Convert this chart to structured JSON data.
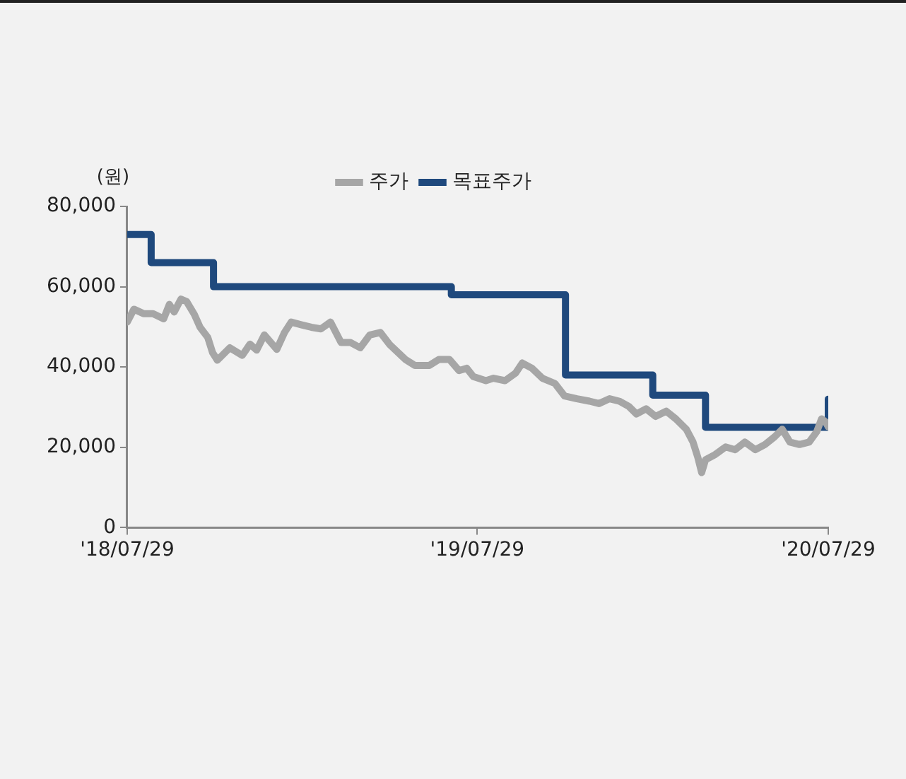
{
  "chart_data": {
    "type": "line",
    "ylabel": "(원)",
    "legend": "top",
    "grid": false,
    "marker": "none",
    "line_style": "solid",
    "xlim": [
      "2018-07-29",
      "2020-07-29"
    ],
    "xticks": [
      {
        "value": "2018-07-29",
        "label": "'18/07/29"
      },
      {
        "value": "2019-07-29",
        "label": "'19/07/29"
      },
      {
        "value": "2020-07-29",
        "label": "'20/07/29"
      }
    ],
    "ylim": [
      0,
      80000
    ],
    "yticks": [
      0,
      {
        "value": 20000,
        "label": "20,000"
      },
      {
        "value": 40000,
        "label": "40,000"
      },
      {
        "value": 60000,
        "label": "60,000"
      },
      {
        "value": 80000,
        "label": "80,000"
      }
    ],
    "series": [
      {
        "name": "주가",
        "type": "line",
        "color": "#a6a6a6",
        "x": [
          "2018-07-29",
          "2018-08-05",
          "2018-08-15",
          "2018-08-25",
          "2018-09-05",
          "2018-09-11",
          "2018-09-16",
          "2018-09-23",
          "2018-09-29",
          "2018-10-07",
          "2018-10-13",
          "2018-10-21",
          "2018-10-26",
          "2018-10-31",
          "2018-11-13",
          "2018-11-26",
          "2018-12-04",
          "2018-12-11",
          "2018-12-19",
          "2019-01-01",
          "2019-01-09",
          "2019-01-16",
          "2019-01-27",
          "2019-02-06",
          "2019-02-16",
          "2019-02-26",
          "2019-03-09",
          "2019-03-19",
          "2019-03-29",
          "2019-04-08",
          "2019-04-19",
          "2019-04-29",
          "2019-05-15",
          "2019-05-25",
          "2019-06-09",
          "2019-06-19",
          "2019-06-30",
          "2019-07-10",
          "2019-07-18",
          "2019-07-25",
          "2019-08-07",
          "2019-08-15",
          "2019-08-27",
          "2019-09-07",
          "2019-09-14",
          "2019-09-24",
          "2019-10-05",
          "2019-10-18",
          "2019-10-28",
          "2019-11-10",
          "2019-11-23",
          "2019-12-03",
          "2019-12-14",
          "2019-12-24",
          "2020-01-03",
          "2020-01-11",
          "2020-01-21",
          "2020-01-31",
          "2020-02-11",
          "2020-02-21",
          "2020-03-03",
          "2020-03-10",
          "2020-03-15",
          "2020-03-19",
          "2020-03-23",
          "2020-04-02",
          "2020-04-13",
          "2020-04-23",
          "2020-05-03",
          "2020-05-14",
          "2020-05-24",
          "2020-06-03",
          "2020-06-11",
          "2020-06-19",
          "2020-06-29",
          "2020-07-09",
          "2020-07-17",
          "2020-07-22",
          "2020-07-26",
          "2020-07-29"
        ],
        "values": [
          51200,
          54400,
          53300,
          53300,
          52000,
          55600,
          53700,
          56900,
          56300,
          53100,
          49900,
          47400,
          43600,
          41700,
          44800,
          42900,
          45700,
          44200,
          48000,
          44400,
          48600,
          51200,
          50500,
          49900,
          49500,
          51200,
          46100,
          46100,
          44800,
          48000,
          48600,
          45500,
          41900,
          40400,
          40400,
          41900,
          41900,
          39100,
          39700,
          37600,
          36600,
          37200,
          36600,
          38500,
          41000,
          39700,
          37200,
          35900,
          32800,
          32100,
          31500,
          30900,
          32100,
          31500,
          30200,
          28300,
          29600,
          27700,
          29000,
          27100,
          24500,
          21300,
          17500,
          13700,
          16900,
          18200,
          20100,
          19400,
          21300,
          19400,
          20700,
          22600,
          24500,
          21300,
          20700,
          21300,
          23900,
          27100,
          26400,
          25100
        ]
      },
      {
        "name": "목표주가",
        "type": "step",
        "color": "#1f497d",
        "x": [
          "2018-07-29",
          "2018-08-23",
          "2018-10-27",
          "2019-07-02",
          "2019-10-29",
          "2020-01-28",
          "2020-03-23",
          "2020-07-29"
        ],
        "values": [
          73000,
          66000,
          60000,
          58000,
          38000,
          33000,
          25000,
          32000
        ]
      }
    ]
  }
}
